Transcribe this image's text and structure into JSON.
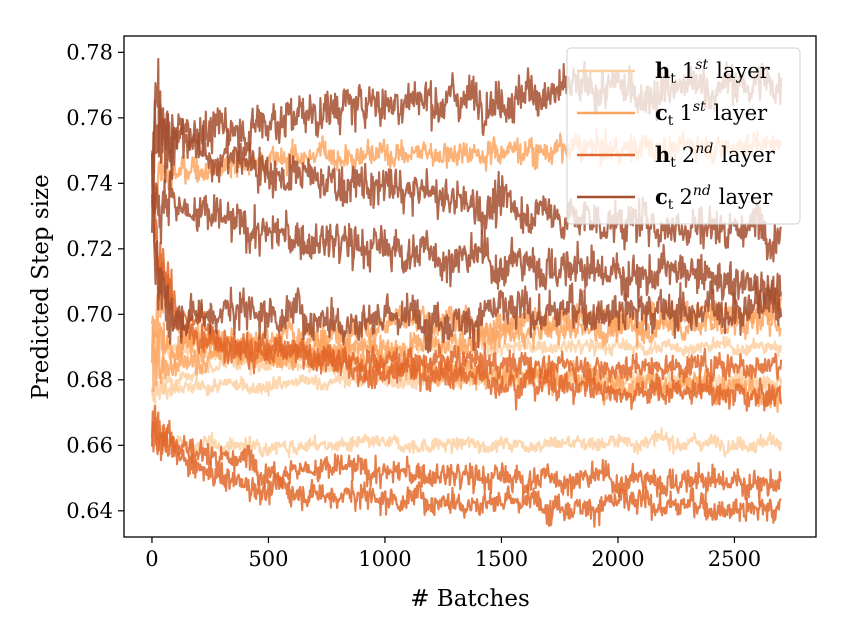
{
  "chart_data": {
    "type": "line",
    "xlabel": "# Batches",
    "ylabel": "Predicted Step size",
    "xlim": [
      -120,
      2850
    ],
    "ylim": [
      0.632,
      0.785
    ],
    "xticks": [
      0,
      500,
      1000,
      1500,
      2000,
      2500
    ],
    "yticks": [
      0.64,
      0.66,
      0.68,
      0.7,
      0.72,
      0.74,
      0.76,
      0.78
    ],
    "grid": false,
    "legend_position": "top-right",
    "legend": [
      {
        "bold": "h",
        "sub": "t",
        "num": "1",
        "sup": "st",
        "word": "layer",
        "color": "#fdd0a2"
      },
      {
        "bold": "c",
        "sub": "t",
        "num": "1",
        "sup": "st",
        "word": "layer",
        "color": "#fda45f"
      },
      {
        "bold": "h",
        "sub": "t",
        "num": "2",
        "sup": "nd",
        "word": "layer",
        "color": "#e2672a"
      },
      {
        "bold": "c",
        "sub": "t",
        "num": "2",
        "sup": "nd",
        "word": "layer",
        "color": "#a34e2e"
      }
    ],
    "series": [
      {
        "group": 0,
        "color": "#fdd0a2",
        "noise": 0.001,
        "points": [
          [
            0,
            0.675
          ],
          [
            40,
            0.661
          ],
          [
            200,
            0.66
          ],
          [
            1000,
            0.66
          ],
          [
            2000,
            0.661
          ],
          [
            2700,
            0.661
          ]
        ]
      },
      {
        "group": 0,
        "color": "#fdd0a2",
        "noise": 0.001,
        "points": [
          [
            0,
            0.688
          ],
          [
            60,
            0.676
          ],
          [
            300,
            0.678
          ],
          [
            1000,
            0.68
          ],
          [
            2000,
            0.68
          ],
          [
            2700,
            0.68
          ]
        ]
      },
      {
        "group": 0,
        "color": "#fdd0a2",
        "noise": 0.001,
        "points": [
          [
            0,
            0.676
          ],
          [
            80,
            0.68
          ],
          [
            400,
            0.687
          ],
          [
            1000,
            0.69
          ],
          [
            2000,
            0.69
          ],
          [
            2700,
            0.69
          ]
        ]
      },
      {
        "group": 0,
        "color": "#fdd0a2",
        "noise": 0.001,
        "points": [
          [
            0,
            0.694
          ],
          [
            100,
            0.689
          ],
          [
            600,
            0.684
          ],
          [
            1500,
            0.681
          ],
          [
            2700,
            0.678
          ]
        ]
      },
      {
        "group": 1,
        "color": "#fda45f",
        "noise": 0.0018,
        "points": [
          [
            0,
            0.735
          ],
          [
            40,
            0.742
          ],
          [
            300,
            0.746
          ],
          [
            800,
            0.749
          ],
          [
            1500,
            0.75
          ],
          [
            2700,
            0.752
          ]
        ]
      },
      {
        "group": 1,
        "color": "#fda45f",
        "noise": 0.0018,
        "points": [
          [
            0,
            0.702
          ],
          [
            60,
            0.69
          ],
          [
            400,
            0.693
          ],
          [
            1200,
            0.697
          ],
          [
            2000,
            0.699
          ],
          [
            2700,
            0.702
          ]
        ]
      },
      {
        "group": 1,
        "color": "#fda45f",
        "noise": 0.0018,
        "points": [
          [
            0,
            0.74
          ],
          [
            40,
            0.705
          ],
          [
            150,
            0.692
          ],
          [
            500,
            0.688
          ],
          [
            1500,
            0.682
          ],
          [
            2700,
            0.676
          ]
        ]
      },
      {
        "group": 1,
        "color": "#fda45f",
        "noise": 0.0018,
        "points": [
          [
            0,
            0.686
          ],
          [
            80,
            0.683
          ],
          [
            300,
            0.688
          ],
          [
            1000,
            0.69
          ],
          [
            2000,
            0.696
          ],
          [
            2700,
            0.698
          ]
        ]
      },
      {
        "group": 2,
        "color": "#e2672a",
        "noise": 0.0018,
        "points": [
          [
            0,
            0.668
          ],
          [
            40,
            0.664
          ],
          [
            200,
            0.658
          ],
          [
            600,
            0.653
          ],
          [
            1500,
            0.65
          ],
          [
            2700,
            0.649
          ]
        ]
      },
      {
        "group": 2,
        "color": "#e2672a",
        "noise": 0.0018,
        "points": [
          [
            0,
            0.662
          ],
          [
            40,
            0.66
          ],
          [
            200,
            0.652
          ],
          [
            500,
            0.647
          ],
          [
            1000,
            0.644
          ],
          [
            2000,
            0.642
          ],
          [
            2700,
            0.641
          ]
        ]
      },
      {
        "group": 2,
        "color": "#e2672a",
        "noise": 0.0018,
        "points": [
          [
            0,
            0.74
          ],
          [
            30,
            0.715
          ],
          [
            120,
            0.7
          ],
          [
            400,
            0.69
          ],
          [
            1000,
            0.686
          ],
          [
            2000,
            0.684
          ],
          [
            2700,
            0.685
          ]
        ]
      },
      {
        "group": 2,
        "color": "#e2672a",
        "noise": 0.0018,
        "points": [
          [
            0,
            0.735
          ],
          [
            30,
            0.712
          ],
          [
            150,
            0.695
          ],
          [
            500,
            0.688
          ],
          [
            1000,
            0.683
          ],
          [
            1500,
            0.68
          ],
          [
            2000,
            0.677
          ],
          [
            2700,
            0.675
          ]
        ]
      },
      {
        "group": 3,
        "color": "#a34e2e",
        "noise": 0.0028,
        "points": [
          [
            0,
            0.745
          ],
          [
            15,
            0.768
          ],
          [
            60,
            0.752
          ],
          [
            300,
            0.756
          ],
          [
            700,
            0.762
          ],
          [
            1000,
            0.765
          ],
          [
            1500,
            0.767
          ],
          [
            2000,
            0.768
          ],
          [
            2700,
            0.77
          ]
        ]
      },
      {
        "group": 3,
        "color": "#a34e2e",
        "noise": 0.0028,
        "points": [
          [
            0,
            0.745
          ],
          [
            20,
            0.76
          ],
          [
            100,
            0.755
          ],
          [
            300,
            0.748
          ],
          [
            700,
            0.741
          ],
          [
            1000,
            0.738
          ],
          [
            1500,
            0.733
          ],
          [
            2000,
            0.728
          ],
          [
            2700,
            0.727
          ]
        ]
      },
      {
        "group": 3,
        "color": "#a34e2e",
        "noise": 0.0028,
        "points": [
          [
            0,
            0.745
          ],
          [
            20,
            0.74
          ],
          [
            150,
            0.732
          ],
          [
            400,
            0.726
          ],
          [
            700,
            0.722
          ],
          [
            1000,
            0.72
          ],
          [
            1500,
            0.716
          ],
          [
            2000,
            0.713
          ],
          [
            2700,
            0.709
          ]
        ]
      },
      {
        "group": 3,
        "color": "#a34e2e",
        "noise": 0.0028,
        "points": [
          [
            0,
            0.72
          ],
          [
            30,
            0.706
          ],
          [
            100,
            0.701
          ],
          [
            400,
            0.701
          ],
          [
            1000,
            0.699
          ],
          [
            1500,
            0.7
          ],
          [
            2000,
            0.702
          ],
          [
            2300,
            0.701
          ],
          [
            2700,
            0.704
          ]
        ]
      }
    ]
  }
}
